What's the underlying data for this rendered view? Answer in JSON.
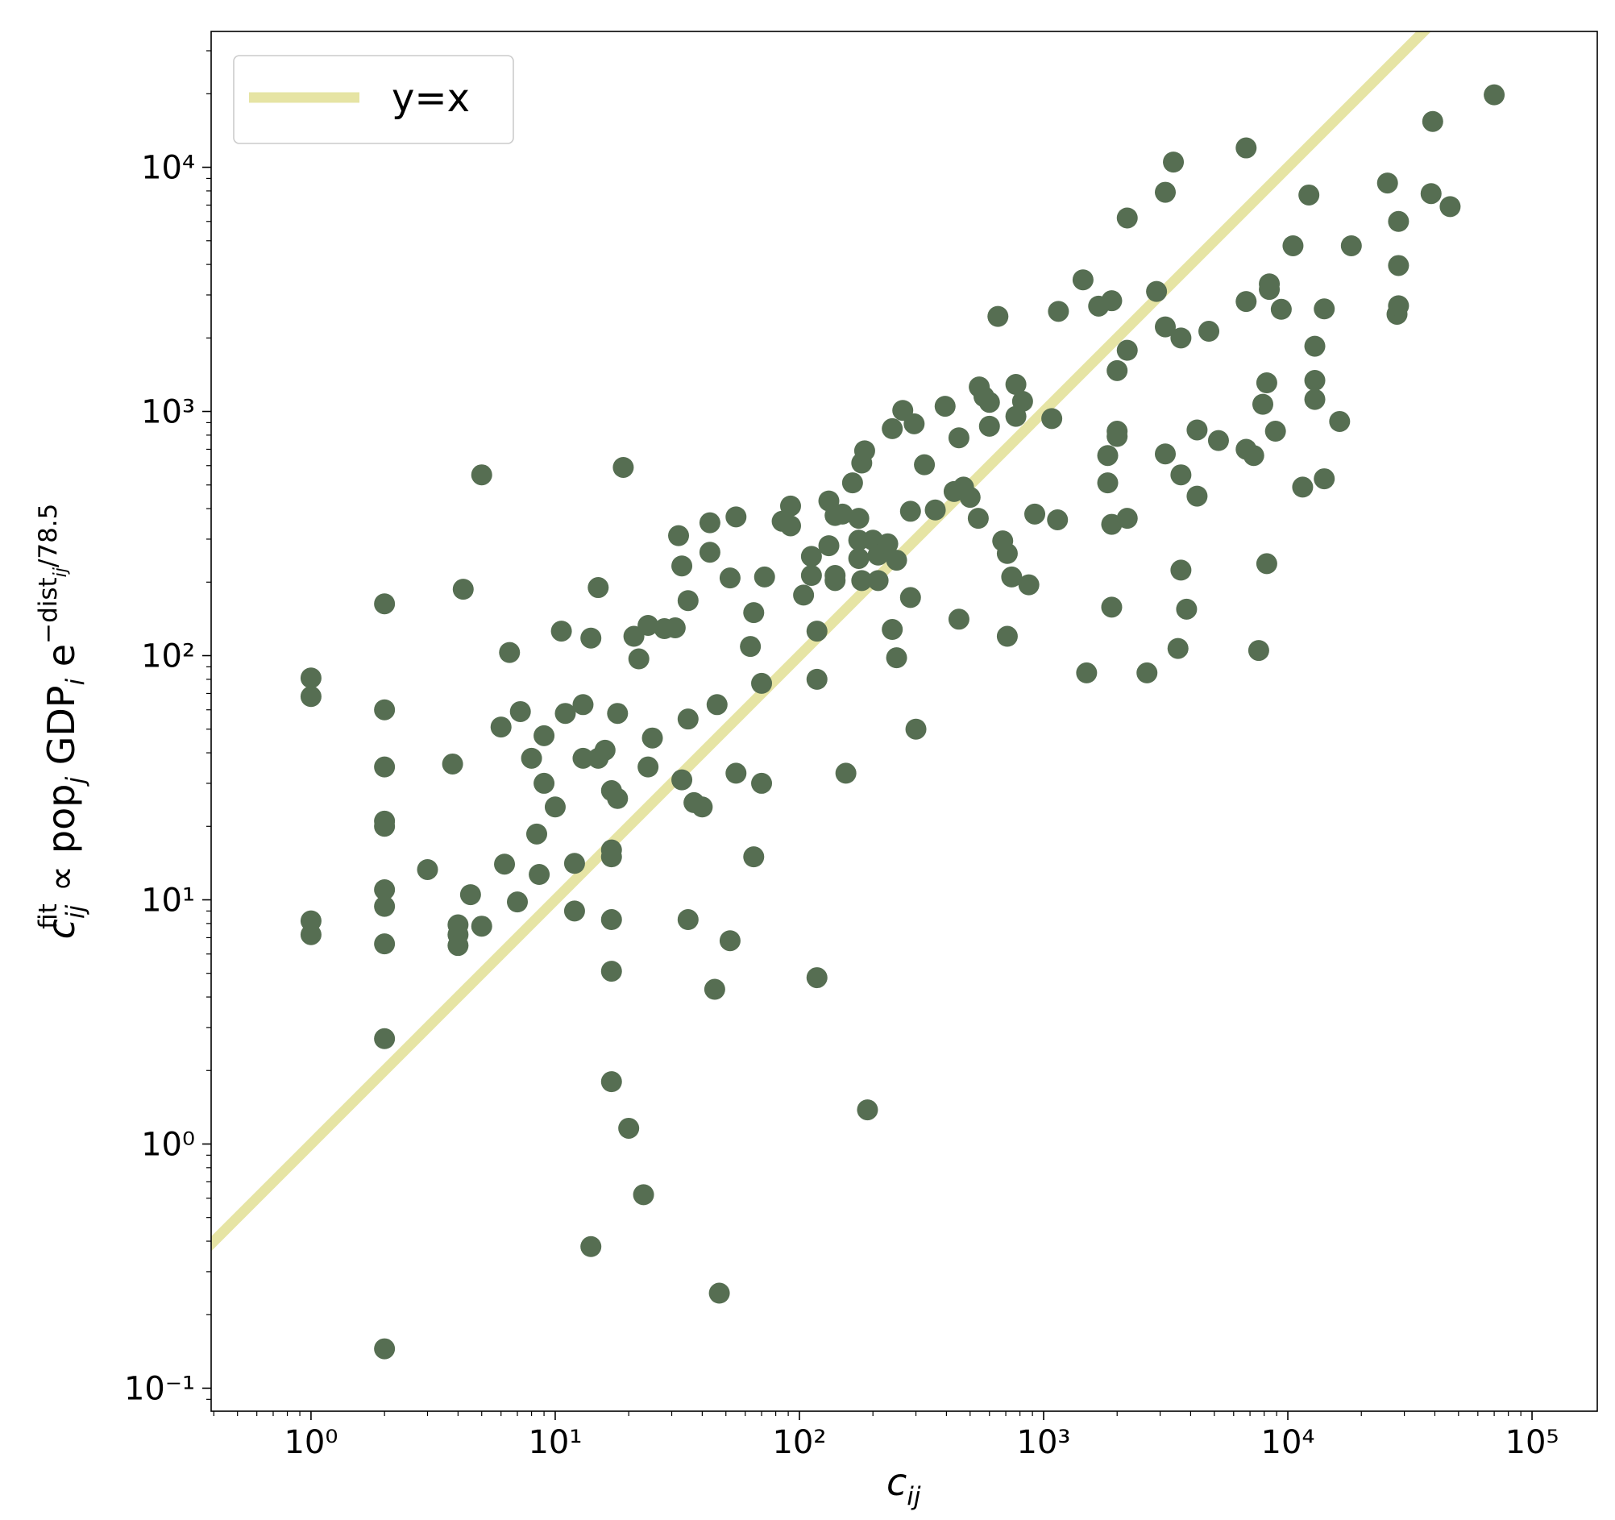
{
  "chart_data": {
    "type": "scatter",
    "xlabel": [
      "c",
      "ij"
    ],
    "ylabel": [
      "c",
      "ij",
      "fit",
      " ∝ pop",
      "j",
      " GDP",
      "i",
      " e",
      "−dist",
      "ij",
      "/78.5"
    ],
    "xscale": "log",
    "yscale": "log",
    "xlim": [
      0.39,
      185000
    ],
    "ylim": [
      0.0805,
      36000
    ],
    "xticks": [
      {
        "value": 1,
        "label": "10⁰"
      },
      {
        "value": 10,
        "label": "10¹"
      },
      {
        "value": 100,
        "label": "10²"
      },
      {
        "value": 1000,
        "label": "10³"
      },
      {
        "value": 10000,
        "label": "10⁴"
      },
      {
        "value": 100000,
        "label": "10⁵"
      }
    ],
    "yticks": [
      {
        "value": 0.1,
        "label": "10⁻¹"
      },
      {
        "value": 1,
        "label": "10⁰"
      },
      {
        "value": 10,
        "label": "10¹"
      },
      {
        "value": 100,
        "label": "10²"
      },
      {
        "value": 1000,
        "label": "10³"
      },
      {
        "value": 10000,
        "label": "10⁴"
      }
    ],
    "legend": "upper left",
    "reference_line": {
      "name": "y=x",
      "color": "#e6e4a4"
    },
    "series": [
      {
        "color": "#566e52",
        "x": [
          1,
          1,
          1,
          1,
          2,
          2,
          2,
          2,
          2,
          2,
          2,
          2,
          2,
          2,
          3,
          3.8,
          4,
          4,
          4,
          4.2,
          4.5,
          5,
          5,
          6,
          6.2,
          6.5,
          7,
          7.2,
          8,
          8.4,
          8.6,
          9,
          9,
          10,
          10.6,
          11,
          12,
          12,
          13,
          13,
          14,
          14,
          15,
          15,
          16,
          17,
          17,
          17,
          17,
          17,
          17,
          18,
          18,
          19,
          20,
          21,
          22,
          23,
          24,
          24,
          25,
          28,
          31,
          32,
          33,
          33,
          35,
          35,
          35,
          37,
          40,
          43,
          43,
          45,
          46,
          47,
          52,
          52,
          55,
          55,
          63,
          65,
          65,
          70,
          70,
          72,
          85,
          92,
          92,
          104,
          112,
          112,
          118,
          118,
          118,
          132,
          132,
          140,
          140,
          140,
          150,
          155,
          165,
          175,
          175,
          175,
          180,
          180,
          185,
          190,
          200,
          210,
          210,
          230,
          240,
          240,
          250,
          250,
          265,
          285,
          285,
          295,
          300,
          325,
          360,
          395,
          430,
          450,
          450,
          470,
          500,
          540,
          545,
          570,
          600,
          600,
          650,
          680,
          710,
          710,
          740,
          770,
          770,
          820,
          870,
          920,
          1080,
          1140,
          1150,
          1450,
          1500,
          1680,
          1830,
          1830,
          1900,
          1900,
          1900,
          2000,
          2000,
          2000,
          2200,
          2200,
          2200,
          2650,
          2900,
          3150,
          3150,
          3150,
          3400,
          3550,
          3650,
          3650,
          3650,
          3850,
          4250,
          4250,
          4750,
          5200,
          6750,
          6750,
          6750,
          7250,
          7600,
          7900,
          8200,
          8200,
          8400,
          8400,
          8900,
          9400,
          10500,
          11500,
          12200,
          12900,
          12900,
          12900,
          14100,
          14100,
          16300,
          18200,
          25600,
          28000,
          28400,
          28400,
          28400,
          38600,
          39200,
          46200,
          70000
        ],
        "values": [
          81,
          68,
          8.2,
          7.2,
          163,
          60,
          35,
          21,
          20,
          11,
          9.4,
          6.6,
          2.7,
          0.145,
          13.3,
          36,
          7.9,
          7.2,
          6.5,
          187,
          10.5,
          550,
          7.8,
          51,
          14,
          103,
          9.8,
          59,
          38,
          18.6,
          12.7,
          47,
          30,
          24,
          126,
          58,
          14.1,
          9,
          63,
          38,
          118,
          0.38,
          190,
          38,
          41,
          28,
          16,
          15,
          8.3,
          5.1,
          1.8,
          58,
          26,
          590,
          1.16,
          120,
          97,
          0.62,
          133,
          35,
          46,
          129,
          130,
          310,
          233,
          31,
          168,
          55,
          8.3,
          25,
          24,
          350,
          265,
          4.3,
          63,
          0.245,
          208,
          6.8,
          370,
          33,
          109,
          150,
          15,
          77,
          30,
          210,
          355,
          410,
          340,
          177,
          255,
          213,
          126,
          80,
          4.8,
          430,
          282,
          375,
          213,
          203,
          380,
          33,
          510,
          365,
          297,
          250,
          615,
          203,
          690,
          1.38,
          297,
          203,
          258,
          287,
          850,
          128,
          246,
          98,
          1010,
          390,
          173,
          890,
          50,
          605,
          395,
          1050,
          470,
          780,
          141,
          490,
          445,
          365,
          1260,
          1150,
          1090,
          870,
          2450,
          295,
          262,
          120,
          210,
          1290,
          955,
          1100,
          195,
          380,
          935,
          360,
          2570,
          3460,
          85,
          2700,
          660,
          510,
          2840,
          158,
          345,
          1470,
          830,
          790,
          6200,
          1780,
          365,
          85,
          3100,
          7900,
          2220,
          670,
          10500,
          107,
          2000,
          550,
          224,
          155,
          840,
          450,
          2130,
          760,
          12000,
          2820,
          700,
          660,
          105,
          1070,
          1310,
          238,
          3330,
          3160,
          830,
          2620,
          4770,
          490,
          7700,
          1850,
          1340,
          1120,
          2630,
          530,
          910,
          4770,
          8620,
          2500,
          6000,
          3960,
          2710,
          7800,
          15400,
          6900,
          19800
        ]
      }
    ]
  }
}
